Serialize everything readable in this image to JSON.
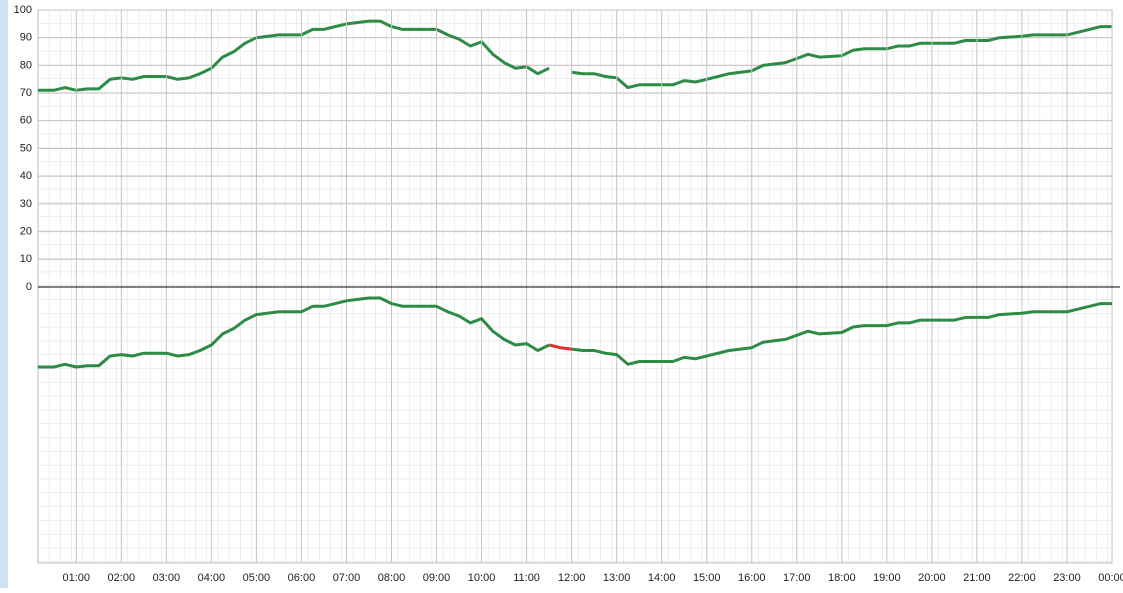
{
  "chart_data": [
    {
      "type": "line",
      "x": [
        0.15,
        0.5,
        0.75,
        1.0,
        1.25,
        1.5,
        1.75,
        2.0,
        2.25,
        2.5,
        3.0,
        3.25,
        3.5,
        3.75,
        4.0,
        4.25,
        4.5,
        4.75,
        5.0,
        5.5,
        6.0,
        6.25,
        6.5,
        6.75,
        7.0,
        7.5,
        7.75,
        8.0,
        8.25,
        9.0,
        9.25,
        9.5,
        9.75,
        10.0,
        10.25,
        10.5,
        10.75,
        11.0,
        11.25,
        11.5,
        11.75,
        12.0,
        12.25,
        12.5,
        12.75,
        13.0,
        13.25,
        13.5,
        13.75,
        14.0,
        14.25,
        14.5,
        14.75,
        15.0,
        15.25,
        15.5,
        15.75,
        16.0,
        16.25,
        16.5,
        16.75,
        17.0,
        17.25,
        17.5,
        18.0,
        18.25,
        18.5,
        19.0,
        19.25,
        19.5,
        19.75,
        20.0,
        20.5,
        20.75,
        21.25,
        21.5,
        22.0,
        22.25,
        23.0,
        23.25,
        23.5,
        23.75,
        24.0
      ],
      "series": [
        {
          "color": "#2e8b46",
          "values": [
            71,
            71,
            72,
            71,
            71.5,
            71.5,
            75,
            75.5,
            75,
            76,
            76,
            75,
            75.5,
            77,
            79,
            83,
            85,
            88,
            90,
            91,
            91,
            93,
            93,
            94,
            95,
            96,
            96,
            94,
            93,
            93,
            91,
            89.5,
            87,
            88.5,
            84,
            81,
            79,
            79.5,
            77,
            79,
            null,
            77.5,
            77,
            77,
            76,
            75.5,
            72,
            73,
            73,
            73,
            73,
            74.5,
            74,
            75,
            76,
            77,
            77.5,
            78,
            80,
            80.5,
            81,
            82.5,
            84,
            83,
            83.5,
            85.5,
            86,
            86,
            87,
            87,
            88,
            88,
            88,
            89,
            89,
            90,
            90.5,
            91,
            91,
            92,
            93,
            94,
            94
          ]
        }
      ],
      "xlim": [
        0.15,
        24
      ],
      "ylim": [
        0,
        100
      ],
      "yticks": [
        0,
        10,
        20,
        30,
        40,
        50,
        60,
        70,
        80,
        90,
        100
      ]
    },
    {
      "type": "line",
      "x": [
        0.15,
        0.5,
        0.75,
        1.0,
        1.25,
        1.5,
        1.75,
        2.0,
        2.25,
        2.5,
        3.0,
        3.25,
        3.5,
        3.75,
        4.0,
        4.25,
        4.5,
        4.75,
        5.0,
        5.5,
        6.0,
        6.25,
        6.5,
        6.75,
        7.0,
        7.5,
        7.75,
        8.0,
        8.25,
        9.0,
        9.25,
        9.5,
        9.75,
        10.0,
        10.25,
        10.5,
        10.75,
        11.0,
        11.25,
        11.5,
        11.75,
        12.0,
        12.25,
        12.5,
        12.75,
        13.0,
        13.25,
        13.5,
        13.75,
        14.0,
        14.25,
        14.5,
        14.75,
        15.0,
        15.25,
        15.5,
        15.75,
        16.0,
        16.25,
        16.5,
        16.75,
        17.0,
        17.25,
        17.5,
        18.0,
        18.25,
        18.5,
        19.0,
        19.25,
        19.5,
        19.75,
        20.0,
        20.5,
        20.75,
        21.25,
        21.5,
        22.0,
        22.25,
        23.0,
        23.25,
        23.5,
        23.75,
        24.0
      ],
      "series": [
        {
          "color": "#2e8b46",
          "values": [
            71,
            71,
            72,
            71,
            71.5,
            71.5,
            75,
            75.5,
            75,
            76,
            76,
            75,
            75.5,
            77,
            79,
            83,
            85,
            88,
            90,
            91,
            91,
            93,
            93,
            94,
            95,
            96,
            96,
            94,
            93,
            93,
            91,
            89.5,
            87,
            88.5,
            84,
            81,
            79,
            79.5,
            77,
            79,
            null,
            77.5,
            77,
            77,
            76,
            75.5,
            72,
            73,
            73,
            73,
            73,
            74.5,
            74,
            75,
            76,
            77,
            77.5,
            78,
            80,
            80.5,
            81,
            82.5,
            84,
            83,
            83.5,
            85.5,
            86,
            86,
            87,
            87,
            88,
            88,
            88,
            89,
            89,
            90,
            90.5,
            91,
            91,
            92,
            93,
            94,
            94
          ]
        },
        {
          "color": "#e03030",
          "values": [
            null,
            null,
            null,
            null,
            null,
            null,
            null,
            null,
            null,
            null,
            null,
            null,
            null,
            null,
            null,
            null,
            null,
            null,
            null,
            null,
            null,
            null,
            null,
            null,
            null,
            null,
            null,
            null,
            null,
            null,
            null,
            null,
            null,
            null,
            null,
            null,
            null,
            null,
            null,
            79,
            78,
            77.5,
            null,
            null,
            null,
            null,
            null,
            null,
            null,
            null,
            null,
            null,
            null,
            null,
            null,
            null,
            null,
            null,
            null,
            null,
            null,
            null,
            null,
            null,
            null,
            null,
            null,
            null,
            null,
            null,
            null,
            null,
            null,
            null,
            null,
            null,
            null,
            null,
            null,
            null,
            null,
            null,
            null
          ]
        }
      ],
      "xlim": [
        0.15,
        24
      ],
      "ylim": [
        0,
        100
      ],
      "xticks": [
        {
          "value": 1,
          "label": "01:00"
        },
        {
          "value": 2,
          "label": "02:00"
        },
        {
          "value": 3,
          "label": "03:00"
        },
        {
          "value": 4,
          "label": "04:00"
        },
        {
          "value": 5,
          "label": "05:00"
        },
        {
          "value": 6,
          "label": "06:00"
        },
        {
          "value": 7,
          "label": "07:00"
        },
        {
          "value": 8,
          "label": "08:00"
        },
        {
          "value": 9,
          "label": "09:00"
        },
        {
          "value": 10,
          "label": "10:00"
        },
        {
          "value": 11,
          "label": "11:00"
        },
        {
          "value": 12,
          "label": "12:00"
        },
        {
          "value": 13,
          "label": "13:00"
        },
        {
          "value": 14,
          "label": "14:00"
        },
        {
          "value": 15,
          "label": "15:00"
        },
        {
          "value": 16,
          "label": "16:00"
        },
        {
          "value": 17,
          "label": "17:00"
        },
        {
          "value": 18,
          "label": "18:00"
        },
        {
          "value": 19,
          "label": "19:00"
        },
        {
          "value": 20,
          "label": "20:00"
        },
        {
          "value": 21,
          "label": "21:00"
        },
        {
          "value": 22,
          "label": "22:00"
        },
        {
          "value": 23,
          "label": "23:00"
        },
        {
          "value": 24,
          "label": "00:00"
        }
      ]
    }
  ]
}
